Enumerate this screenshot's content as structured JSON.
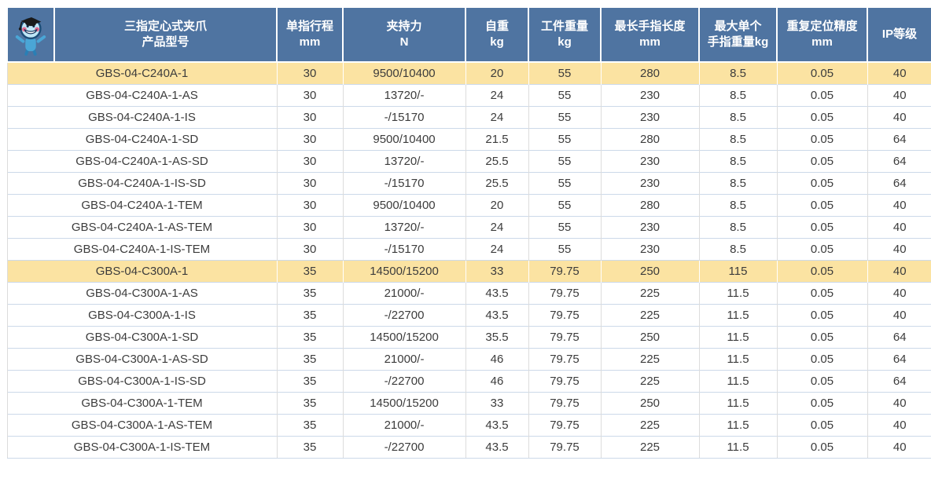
{
  "colors": {
    "header_bg": "#4f74a1",
    "header_text": "#ffffff",
    "highlight_bg": "#fbe3a2",
    "row_bg": "#ffffff",
    "row_text": "#3c3c3c",
    "horizontal_border": "#ccd9e9",
    "vertical_border": "#dcdcdc"
  },
  "logo": {
    "icon": "mascot-icon"
  },
  "table": {
    "header": {
      "product_model_header": {
        "line1": "三指定心式夹爪",
        "line2": "产品型号"
      },
      "columns": [
        {
          "label": "单指行程",
          "unit": "mm"
        },
        {
          "label": "夹持力",
          "unit": "N"
        },
        {
          "label": "自重",
          "unit": "kg"
        },
        {
          "label": "工件重量",
          "unit": "kg"
        },
        {
          "label": "最长手指长度",
          "unit": "mm"
        },
        {
          "label": "最大单个",
          "unit": "手指重量kg"
        },
        {
          "label": "重复定位精度",
          "unit": "mm"
        },
        {
          "label": "IP等级",
          "unit": ""
        }
      ]
    },
    "rows": [
      {
        "model": "GBS-04-C240A-1",
        "highlight": true,
        "values": [
          "30",
          "9500/10400",
          "20",
          "55",
          "280",
          "8.5",
          "0.05",
          "40"
        ]
      },
      {
        "model": "GBS-04-C240A-1-AS",
        "highlight": false,
        "values": [
          "30",
          "13720/-",
          "24",
          "55",
          "230",
          "8.5",
          "0.05",
          "40"
        ]
      },
      {
        "model": "GBS-04-C240A-1-IS",
        "highlight": false,
        "values": [
          "30",
          "-/15170",
          "24",
          "55",
          "230",
          "8.5",
          "0.05",
          "40"
        ]
      },
      {
        "model": "GBS-04-C240A-1-SD",
        "highlight": false,
        "values": [
          "30",
          "9500/10400",
          "21.5",
          "55",
          "280",
          "8.5",
          "0.05",
          "64"
        ]
      },
      {
        "model": "GBS-04-C240A-1-AS-SD",
        "highlight": false,
        "values": [
          "30",
          "13720/-",
          "25.5",
          "55",
          "230",
          "8.5",
          "0.05",
          "64"
        ]
      },
      {
        "model": "GBS-04-C240A-1-IS-SD",
        "highlight": false,
        "values": [
          "30",
          "-/15170",
          "25.5",
          "55",
          "230",
          "8.5",
          "0.05",
          "64"
        ]
      },
      {
        "model": "GBS-04-C240A-1-TEM",
        "highlight": false,
        "values": [
          "30",
          "9500/10400",
          "20",
          "55",
          "280",
          "8.5",
          "0.05",
          "40"
        ]
      },
      {
        "model": "GBS-04-C240A-1-AS-TEM",
        "highlight": false,
        "values": [
          "30",
          "13720/-",
          "24",
          "55",
          "230",
          "8.5",
          "0.05",
          "40"
        ]
      },
      {
        "model": "GBS-04-C240A-1-IS-TEM",
        "highlight": false,
        "values": [
          "30",
          "-/15170",
          "24",
          "55",
          "230",
          "8.5",
          "0.05",
          "40"
        ]
      },
      {
        "model": "GBS-04-C300A-1",
        "highlight": true,
        "values": [
          "35",
          "14500/15200",
          "33",
          "79.75",
          "250",
          "115",
          "0.05",
          "40"
        ]
      },
      {
        "model": "GBS-04-C300A-1-AS",
        "highlight": false,
        "values": [
          "35",
          "21000/-",
          "43.5",
          "79.75",
          "225",
          "11.5",
          "0.05",
          "40"
        ]
      },
      {
        "model": "GBS-04-C300A-1-IS",
        "highlight": false,
        "values": [
          "35",
          "-/22700",
          "43.5",
          "79.75",
          "225",
          "11.5",
          "0.05",
          "40"
        ]
      },
      {
        "model": "GBS-04-C300A-1-SD",
        "highlight": false,
        "values": [
          "35",
          "14500/15200",
          "35.5",
          "79.75",
          "250",
          "11.5",
          "0.05",
          "64"
        ]
      },
      {
        "model": "GBS-04-C300A-1-AS-SD",
        "highlight": false,
        "values": [
          "35",
          "21000/-",
          "46",
          "79.75",
          "225",
          "11.5",
          "0.05",
          "64"
        ]
      },
      {
        "model": "GBS-04-C300A-1-IS-SD",
        "highlight": false,
        "values": [
          "35",
          "-/22700",
          "46",
          "79.75",
          "225",
          "11.5",
          "0.05",
          "64"
        ]
      },
      {
        "model": "GBS-04-C300A-1-TEM",
        "highlight": false,
        "values": [
          "35",
          "14500/15200",
          "33",
          "79.75",
          "250",
          "11.5",
          "0.05",
          "40"
        ]
      },
      {
        "model": "GBS-04-C300A-1-AS-TEM",
        "highlight": false,
        "values": [
          "35",
          "21000/-",
          "43.5",
          "79.75",
          "225",
          "11.5",
          "0.05",
          "40"
        ]
      },
      {
        "model": "GBS-04-C300A-1-IS-TEM",
        "highlight": false,
        "values": [
          "35",
          "-/22700",
          "43.5",
          "79.75",
          "225",
          "11.5",
          "0.05",
          "40"
        ]
      }
    ]
  }
}
